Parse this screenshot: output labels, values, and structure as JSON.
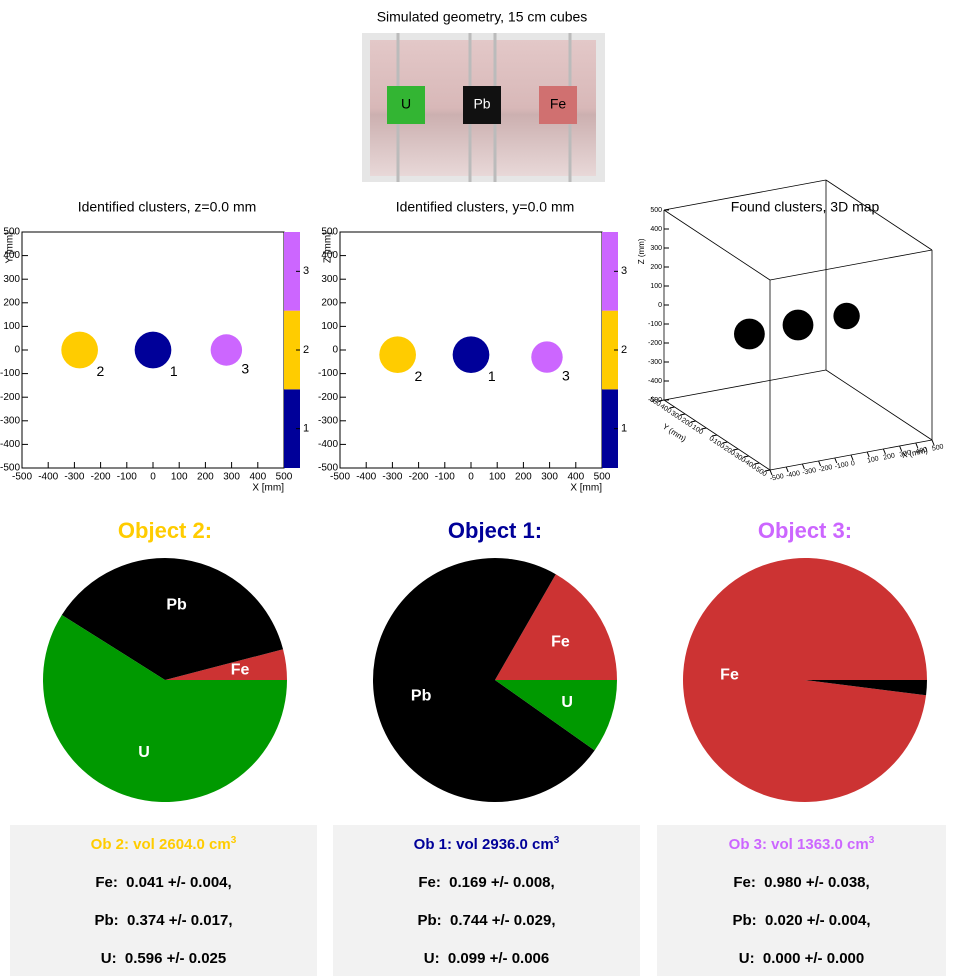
{
  "geometry": {
    "title": "Simulated geometry, 15 cm cubes",
    "blocks": [
      {
        "label": "U",
        "color": "#33b533"
      },
      {
        "label": "Pb",
        "color": "#111111"
      },
      {
        "label": "Fe",
        "color": "#d07070"
      }
    ]
  },
  "chart_data": [
    {
      "type": "cluster-map",
      "title": "Identified clusters, z=0.0 mm",
      "xlabel": "X [mm]",
      "ylabel": "Y [mm]",
      "xlim": [
        -500,
        500
      ],
      "ylim": [
        -500,
        500
      ],
      "xticks": [
        -500,
        -400,
        -300,
        -200,
        -100,
        0,
        100,
        200,
        300,
        400,
        500
      ],
      "yticks": [
        -500,
        -400,
        -300,
        -200,
        -100,
        0,
        100,
        200,
        300,
        400,
        500
      ],
      "zlim": [
        0.5,
        3.5
      ],
      "zticks": [
        1,
        2,
        3
      ],
      "zcolors": [
        "#000099",
        "#ffcc00",
        "#cc66ff"
      ],
      "clusters": {
        "labels": [
          "2",
          "1",
          "3"
        ],
        "x": [
          -280,
          0,
          280
        ],
        "y": [
          0,
          0,
          0
        ],
        "radius": [
          70,
          70,
          60
        ],
        "colors": [
          "#ffcc00",
          "#000099",
          "#cc66ff"
        ]
      }
    },
    {
      "type": "cluster-map",
      "title": "Identified clusters, y=0.0 mm",
      "xlabel": "X [mm]",
      "ylabel": "Z [mm]",
      "xlim": [
        -500,
        500
      ],
      "ylim": [
        -500,
        500
      ],
      "xticks": [
        -500,
        -400,
        -300,
        -200,
        -100,
        0,
        100,
        200,
        300,
        400,
        500
      ],
      "yticks": [
        -500,
        -400,
        -300,
        -200,
        -100,
        0,
        100,
        200,
        300,
        400,
        500
      ],
      "zlim": [
        0.5,
        3.5
      ],
      "zticks": [
        1,
        2,
        3
      ],
      "zcolors": [
        "#000099",
        "#ffcc00",
        "#cc66ff"
      ],
      "clusters": {
        "labels": [
          "2",
          "1",
          "3"
        ],
        "x": [
          -280,
          0,
          290
        ],
        "y": [
          -20,
          -20,
          -30
        ],
        "radius": [
          70,
          70,
          60
        ],
        "colors": [
          "#ffcc00",
          "#000099",
          "#cc66ff"
        ]
      }
    },
    {
      "type": "scatter3d",
      "title": "Found clusters, 3D map",
      "xlabel": "X (mm)",
      "ylabel": "Y (mm)",
      "zlabel": "Z (mm)",
      "xlim": [
        -500,
        500
      ],
      "ylim": [
        -500,
        500
      ],
      "zlim": [
        -500,
        500
      ],
      "xticks": [
        -500,
        -400,
        -300,
        -200,
        -100,
        0,
        100,
        200,
        300,
        400,
        500
      ],
      "yticks": [
        -500,
        -400,
        -300,
        -200,
        -100,
        0,
        100,
        200,
        300,
        400,
        500
      ],
      "zticks": [
        -500,
        -400,
        -300,
        -200,
        -100,
        0,
        100,
        200,
        300,
        400,
        500
      ],
      "points": {
        "x": [
          -300,
          0,
          300
        ],
        "y": [
          0,
          0,
          0
        ],
        "z": [
          0,
          0,
          0
        ],
        "radius": [
          70,
          70,
          60
        ]
      },
      "color": "#000000"
    },
    {
      "type": "pie",
      "title": "Object 2:",
      "title_color": "#ffcc00",
      "categories": [
        "Fe",
        "Pb",
        "U"
      ],
      "values": [
        0.041,
        0.374,
        0.596
      ],
      "colors": [
        "#cc3333",
        "#000000",
        "#009900"
      ]
    },
    {
      "type": "pie",
      "title": "Object 1:",
      "title_color": "#000099",
      "categories": [
        "Fe",
        "Pb",
        "U"
      ],
      "values": [
        0.169,
        0.744,
        0.099
      ],
      "colors": [
        "#cc3333",
        "#000000",
        "#009900"
      ]
    },
    {
      "type": "pie",
      "title": "Object 3:",
      "title_color": "#cc66ff",
      "categories": [
        "Fe",
        null,
        null
      ],
      "values": [
        0.98,
        0.02,
        0.0
      ],
      "colors": [
        "#cc3333",
        "#000000",
        "#009900"
      ]
    }
  ],
  "summaries": [
    {
      "title": "Ob 2: vol 2604.0 cm",
      "sup": "3",
      "color": "#ffcc00",
      "rows": [
        {
          "element": "Fe:",
          "value": "0.041 +/- 0.004,"
        },
        {
          "element": "Pb:",
          "value": "0.374 +/- 0.017,"
        },
        {
          "element": "U:",
          "value": "0.596 +/- 0.025"
        }
      ]
    },
    {
      "title": "Ob 1: vol 2936.0 cm",
      "sup": "3",
      "color": "#000099",
      "rows": [
        {
          "element": "Fe:",
          "value": "0.169 +/- 0.008,"
        },
        {
          "element": "Pb:",
          "value": "0.744 +/- 0.029,"
        },
        {
          "element": "U:",
          "value": "0.099 +/- 0.006"
        }
      ]
    },
    {
      "title": "Ob 3: vol 1363.0 cm",
      "sup": "3",
      "color": "#cc66ff",
      "rows": [
        {
          "element": "Fe:",
          "value": "0.980 +/- 0.038,"
        },
        {
          "element": "Pb:",
          "value": "0.020 +/- 0.004,"
        },
        {
          "element": "U:",
          "value": "0.000 +/- 0.000"
        }
      ]
    }
  ]
}
